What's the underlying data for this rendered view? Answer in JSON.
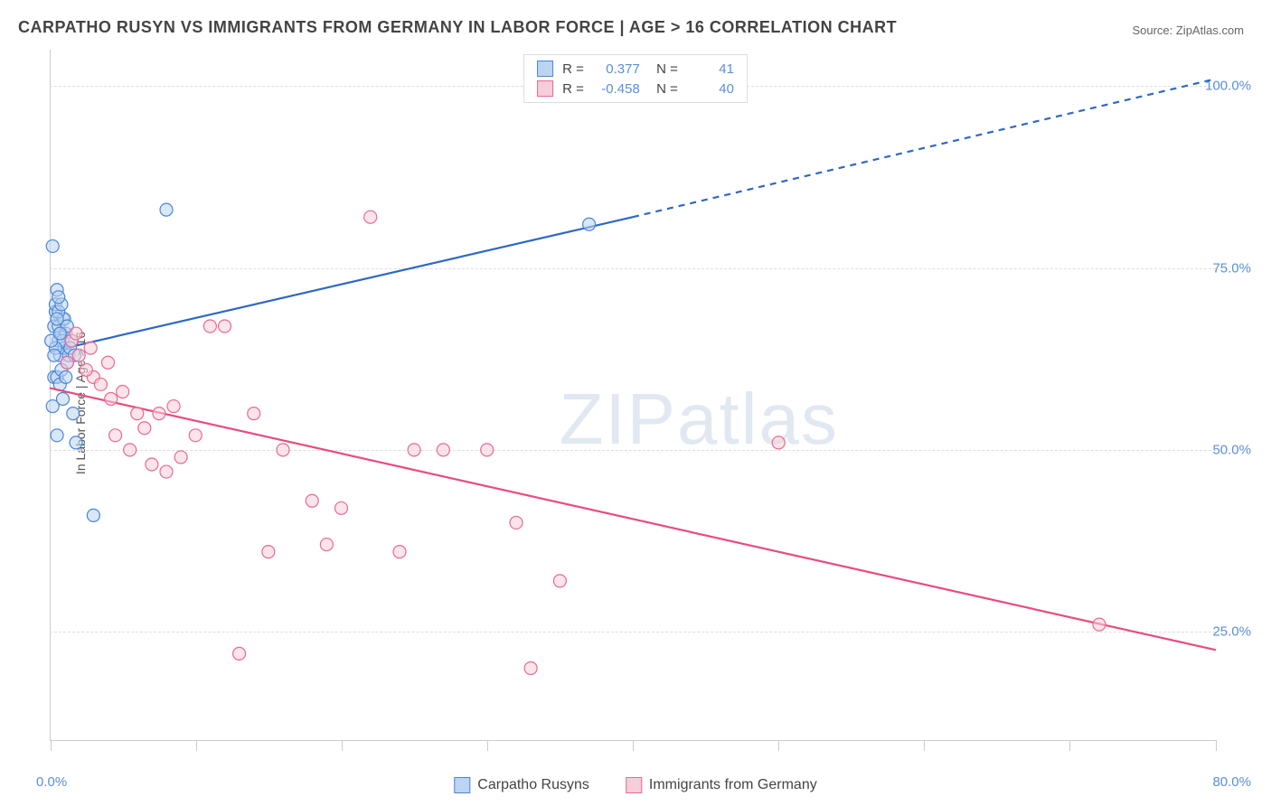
{
  "title": "CARPATHO RUSYN VS IMMIGRANTS FROM GERMANY IN LABOR FORCE | AGE > 16 CORRELATION CHART",
  "source": "Source: ZipAtlas.com",
  "ylabel": "In Labor Force | Age > 16",
  "watermark_a": "ZIP",
  "watermark_b": "atlas",
  "chart": {
    "type": "scatter",
    "xlim": [
      0,
      80
    ],
    "ylim": [
      10,
      105
    ],
    "x_ticks": [
      0,
      80
    ],
    "x_tick_labels": [
      "0.0%",
      "80.0%"
    ],
    "x_minor_ticks": [
      10,
      20,
      30,
      40,
      50,
      60,
      70
    ],
    "y_gridlines": [
      25,
      50,
      75,
      100
    ],
    "y_tick_labels": [
      "25.0%",
      "50.0%",
      "75.0%",
      "100.0%"
    ],
    "grid_color": "#dddddd",
    "axis_color": "#cccccc",
    "tick_label_color": "#5b8fd6",
    "background_color": "#ffffff",
    "marker_radius": 7,
    "marker_stroke_width": 1.2,
    "line_width": 2.2,
    "series": [
      {
        "name": "Carpatho Rusyns",
        "legend_label": "Carpatho Rusyns",
        "fill": "#bcd4f0",
        "stroke": "#4a86d8",
        "line_color": "#2e68c4",
        "R": "0.377",
        "N": "41",
        "regression": {
          "x1": 0,
          "y1": 63.5,
          "x2_solid": 40,
          "y2_solid": 82,
          "x2": 80,
          "y2": 101
        },
        "points": [
          [
            0.2,
            78
          ],
          [
            0.3,
            67
          ],
          [
            0.4,
            69
          ],
          [
            0.6,
            65
          ],
          [
            0.7,
            63
          ],
          [
            0.3,
            60
          ],
          [
            0.5,
            72
          ],
          [
            0.8,
            66
          ],
          [
            0.9,
            68
          ],
          [
            1.0,
            64
          ],
          [
            0.4,
            70
          ],
          [
            0.6,
            67
          ],
          [
            1.2,
            62
          ],
          [
            1.1,
            66
          ],
          [
            0.5,
            60
          ],
          [
            0.9,
            65
          ],
          [
            0.2,
            56
          ],
          [
            0.7,
            59
          ],
          [
            1.3,
            63
          ],
          [
            0.4,
            64
          ],
          [
            0.8,
            61
          ],
          [
            1.0,
            68
          ],
          [
            1.5,
            65
          ],
          [
            0.6,
            69
          ],
          [
            0.3,
            63
          ],
          [
            1.2,
            67
          ],
          [
            0.5,
            68
          ],
          [
            0.8,
            70
          ],
          [
            0.1,
            65
          ],
          [
            0.7,
            66
          ],
          [
            1.1,
            60
          ],
          [
            0.9,
            57
          ],
          [
            1.4,
            64
          ],
          [
            1.6,
            55
          ],
          [
            0.5,
            52
          ],
          [
            1.8,
            51
          ],
          [
            8,
            83
          ],
          [
            3,
            41
          ],
          [
            1.7,
            63
          ],
          [
            37,
            81
          ],
          [
            0.6,
            71
          ]
        ]
      },
      {
        "name": "Immigrants from Germany",
        "legend_label": "Immigrants from Germany",
        "fill": "#f7cdd9",
        "stroke": "#e86a91",
        "line_color": "#e84c7d",
        "R": "-0.458",
        "N": "40",
        "regression": {
          "x1": 0,
          "y1": 58.5,
          "x2_solid": 80,
          "y2_solid": 22.5,
          "x2": 80,
          "y2": 22.5
        },
        "points": [
          [
            1.5,
            65
          ],
          [
            2,
            63
          ],
          [
            4,
            62
          ],
          [
            3,
            60
          ],
          [
            5,
            58
          ],
          [
            6,
            55
          ],
          [
            4.5,
            52
          ],
          [
            5.5,
            50
          ],
          [
            7,
            48
          ],
          [
            8,
            47
          ],
          [
            10,
            52
          ],
          [
            11,
            67
          ],
          [
            12,
            67
          ],
          [
            14,
            55
          ],
          [
            15,
            36
          ],
          [
            16,
            50
          ],
          [
            18,
            43
          ],
          [
            19,
            37
          ],
          [
            20,
            42
          ],
          [
            22,
            82
          ],
          [
            24,
            36
          ],
          [
            25,
            50
          ],
          [
            27,
            50
          ],
          [
            30,
            50
          ],
          [
            32,
            40
          ],
          [
            33,
            20
          ],
          [
            35,
            32
          ],
          [
            50,
            51
          ],
          [
            72,
            26
          ],
          [
            2.5,
            61
          ],
          [
            3.5,
            59
          ],
          [
            4.2,
            57
          ],
          [
            6.5,
            53
          ],
          [
            8.5,
            56
          ],
          [
            9,
            49
          ],
          [
            7.5,
            55
          ],
          [
            13,
            22
          ],
          [
            1.8,
            66
          ],
          [
            2.8,
            64
          ],
          [
            1.2,
            62
          ]
        ]
      }
    ]
  },
  "legend_top": {
    "r_label": "R =",
    "n_label": "N ="
  }
}
